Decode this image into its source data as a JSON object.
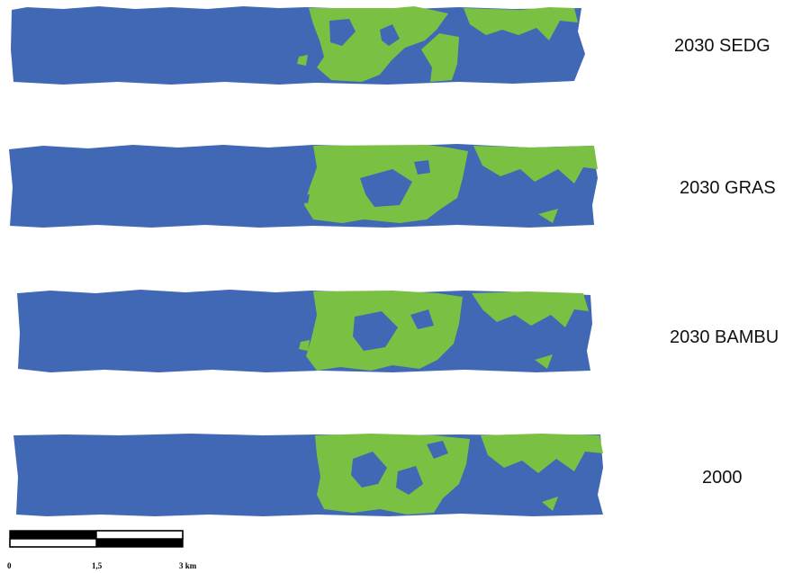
{
  "colors": {
    "water": "#4068b4",
    "vegetation": "#7ac143",
    "scale_dark": "#000000",
    "scale_light": "#ffffff"
  },
  "maps": [
    {
      "label": "2030 SEDG"
    },
    {
      "label": "2030 GRAS"
    },
    {
      "label": "2030 BAMBU"
    },
    {
      "label": "2000"
    }
  ],
  "scalebar": {
    "ticks": [
      "0",
      "1,5",
      "3 km"
    ]
  }
}
